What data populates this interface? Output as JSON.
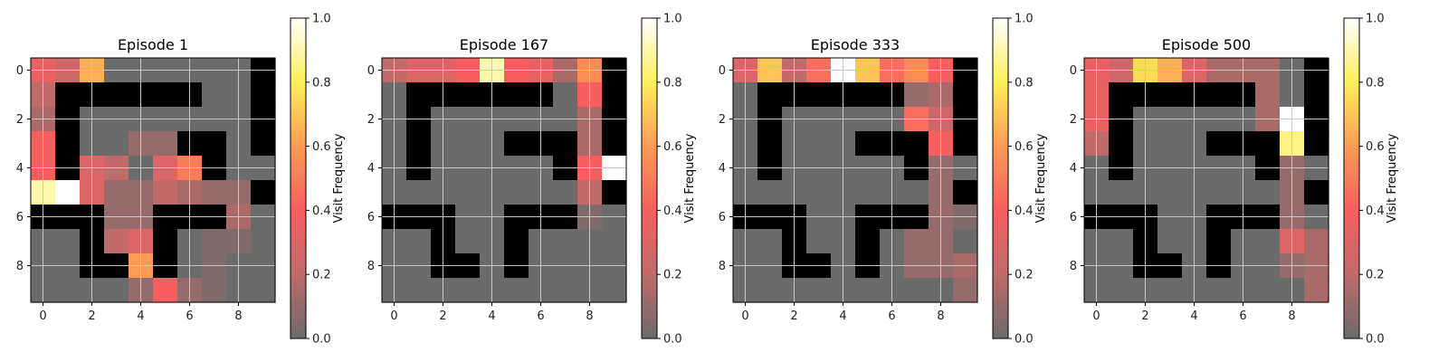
{
  "figure": {
    "background": "#ffffff"
  },
  "chart_data": [
    {
      "type": "heatmap",
      "title": "Episode 1",
      "grid": true,
      "axis_ticks": [
        0,
        2,
        4,
        6,
        8
      ],
      "colorbar": {
        "label": "Visit Frequency",
        "range": [
          0.0,
          1.0
        ],
        "ticks": [
          "0.0",
          "0.2",
          "0.4",
          "0.6",
          "0.8",
          "1.0"
        ]
      },
      "values": [
        [
          0.35,
          0.25,
          0.65,
          0,
          0,
          0,
          0,
          0,
          0,
          -1
        ],
        [
          0.2,
          -1,
          -1,
          -1,
          -1,
          -1,
          -1,
          0,
          0,
          -1
        ],
        [
          0.15,
          -1,
          0,
          0,
          0,
          0,
          0,
          0,
          0,
          -1
        ],
        [
          0.4,
          -1,
          0,
          0,
          0.1,
          0.1,
          -1,
          -1,
          0,
          -1
        ],
        [
          0.4,
          -1,
          0.3,
          0.2,
          0,
          0.3,
          0.5,
          -1,
          0,
          0
        ],
        [
          0.9,
          1.0,
          0.3,
          0.1,
          0.1,
          0.2,
          0.15,
          0.1,
          0.1,
          -1
        ],
        [
          -1,
          -1,
          -1,
          0.1,
          0.1,
          -1,
          -1,
          -1,
          0.15,
          0
        ],
        [
          0,
          0,
          -1,
          0.2,
          0.3,
          -1,
          0,
          0.05,
          0.05,
          0
        ],
        [
          0,
          0,
          -1,
          -1,
          0.6,
          -1,
          0,
          0.05,
          0,
          0
        ],
        [
          0,
          0,
          0,
          0,
          0.1,
          0.4,
          0.1,
          0.05,
          0,
          0
        ]
      ]
    },
    {
      "type": "heatmap",
      "title": "Episode 167",
      "grid": true,
      "axis_ticks": [
        0,
        2,
        4,
        6,
        8
      ],
      "colorbar": {
        "label": "Visit Frequency",
        "range": [
          0.0,
          1.0
        ],
        "ticks": [
          "0.0",
          "0.2",
          "0.4",
          "0.6",
          "0.8",
          "1.0"
        ]
      },
      "values": [
        [
          0.2,
          0.3,
          0.3,
          0.4,
          0.9,
          0.4,
          0.35,
          0.15,
          0.55,
          -1
        ],
        [
          0,
          -1,
          -1,
          -1,
          -1,
          -1,
          -1,
          0,
          0.4,
          -1
        ],
        [
          0,
          -1,
          0,
          0,
          0,
          0,
          0,
          0,
          0.15,
          -1
        ],
        [
          0,
          -1,
          0,
          0,
          0,
          -1,
          -1,
          -1,
          0.15,
          -1
        ],
        [
          0,
          -1,
          0,
          0,
          0,
          0,
          0,
          -1,
          0.4,
          1.0
        ],
        [
          0,
          0,
          0,
          0,
          0,
          0,
          0,
          0,
          0.2,
          -1
        ],
        [
          -1,
          -1,
          -1,
          0,
          0,
          -1,
          -1,
          -1,
          0.05,
          0
        ],
        [
          0,
          0,
          -1,
          0,
          0,
          -1,
          0,
          0,
          0,
          0
        ],
        [
          0,
          0,
          -1,
          -1,
          0,
          -1,
          0,
          0,
          0,
          0
        ],
        [
          0,
          0,
          0,
          0,
          0,
          0,
          0,
          0,
          0,
          0
        ]
      ]
    },
    {
      "type": "heatmap",
      "title": "Episode 333",
      "grid": true,
      "axis_ticks": [
        0,
        2,
        4,
        6,
        8
      ],
      "colorbar": {
        "label": "Visit Frequency",
        "range": [
          0.0,
          1.0
        ],
        "ticks": [
          "0.0",
          "0.2",
          "0.4",
          "0.6",
          "0.8",
          "1.0"
        ]
      },
      "values": [
        [
          0.3,
          0.7,
          0.2,
          0.45,
          1.0,
          0.7,
          0.45,
          0.55,
          0.4,
          -1
        ],
        [
          0,
          -1,
          -1,
          -1,
          -1,
          -1,
          -1,
          0.1,
          0.15,
          -1
        ],
        [
          0,
          -1,
          0,
          0,
          0,
          0,
          0,
          0.45,
          0.25,
          -1
        ],
        [
          0,
          -1,
          0,
          0,
          0,
          -1,
          -1,
          -1,
          0.4,
          -1
        ],
        [
          0,
          -1,
          0,
          0,
          0,
          0,
          0,
          -1,
          0.1,
          0
        ],
        [
          0,
          0,
          0,
          0,
          0,
          0,
          0,
          0,
          0.1,
          -1
        ],
        [
          -1,
          -1,
          -1,
          0,
          0,
          -1,
          -1,
          -1,
          0.1,
          0.05
        ],
        [
          0,
          0,
          -1,
          0,
          0,
          -1,
          0,
          0.1,
          0.1,
          0
        ],
        [
          0,
          0,
          -1,
          -1,
          0,
          -1,
          0,
          0.1,
          0.1,
          0.15
        ],
        [
          0,
          0,
          0,
          0,
          0,
          0,
          0,
          0,
          0,
          0.1
        ]
      ]
    },
    {
      "type": "heatmap",
      "title": "Episode 500",
      "grid": true,
      "axis_ticks": [
        0,
        2,
        4,
        6,
        8
      ],
      "colorbar": {
        "label": "Visit Frequency",
        "range": [
          0.0,
          1.0
        ],
        "ticks": [
          "0.0",
          "0.2",
          "0.4",
          "0.6",
          "0.8",
          "1.0"
        ]
      },
      "values": [
        [
          0.35,
          0.25,
          0.75,
          0.65,
          0.3,
          0.15,
          0.15,
          0.15,
          0,
          -1
        ],
        [
          0.35,
          -1,
          -1,
          -1,
          -1,
          -1,
          -1,
          0.15,
          0,
          -1
        ],
        [
          0.35,
          -1,
          0,
          0,
          0,
          0,
          0,
          0.15,
          1.0,
          -1
        ],
        [
          0.2,
          -1,
          0,
          0,
          0,
          -1,
          -1,
          -1,
          0.85,
          -1
        ],
        [
          0,
          -1,
          0,
          0,
          0,
          0,
          0,
          -1,
          0.1,
          0
        ],
        [
          0,
          0,
          0,
          0,
          0,
          0,
          0,
          0,
          0.1,
          -1
        ],
        [
          -1,
          -1,
          -1,
          0,
          0,
          -1,
          -1,
          -1,
          0.1,
          0
        ],
        [
          0,
          0,
          -1,
          0,
          0,
          -1,
          0,
          0,
          0.3,
          0.15
        ],
        [
          0,
          0,
          -1,
          -1,
          0,
          -1,
          0,
          0,
          0.1,
          0.15
        ],
        [
          0,
          0,
          0,
          0,
          0,
          0,
          0,
          0,
          0,
          0.15
        ]
      ]
    }
  ],
  "colors": {
    "wall": "#000000",
    "colormap": [
      "#6b6b6b",
      "#c06a6a",
      "#f75f5f",
      "#fc9b56",
      "#fff05a",
      "#ffffff"
    ],
    "grid": "#c8c8c8",
    "axis": "#000000"
  }
}
